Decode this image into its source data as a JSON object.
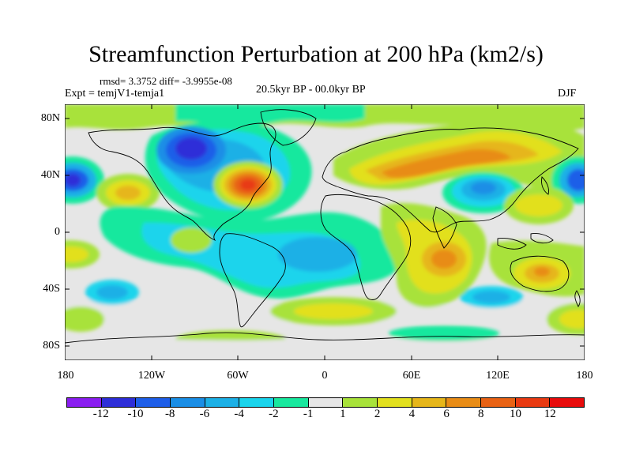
{
  "title": "Streamfunction Perturbation at 200 hPa (km2/s)",
  "stats": "rmsd= 3.3752 diff= -3.9955e-08",
  "experiment": "Expt = temjV1-temja1",
  "period": "20.5kyr BP - 00.0kyr BP",
  "season": "DJF",
  "map": {
    "lat_ticks": [
      "80N",
      "40N",
      "0",
      "40S",
      "80S"
    ],
    "lon_ticks": [
      "180",
      "120W",
      "60W",
      "0",
      "60E",
      "120E",
      "180"
    ],
    "background_color": "#e6e6e6"
  },
  "colorbar": {
    "colors": [
      "#8a1ef0",
      "#2e2ed8",
      "#1e5ee8",
      "#1a8ee6",
      "#1cb0e6",
      "#1ad4ec",
      "#18e89e",
      "#e6e6e6",
      "#a8e23a",
      "#e2e01e",
      "#e6b61a",
      "#e88c16",
      "#e86214",
      "#e83a12",
      "#e80c0c"
    ],
    "labels": [
      "-12",
      "-10",
      "-8",
      "-6",
      "-4",
      "-2",
      "-1",
      "1",
      "2",
      "4",
      "6",
      "8",
      "10",
      "12"
    ]
  }
}
